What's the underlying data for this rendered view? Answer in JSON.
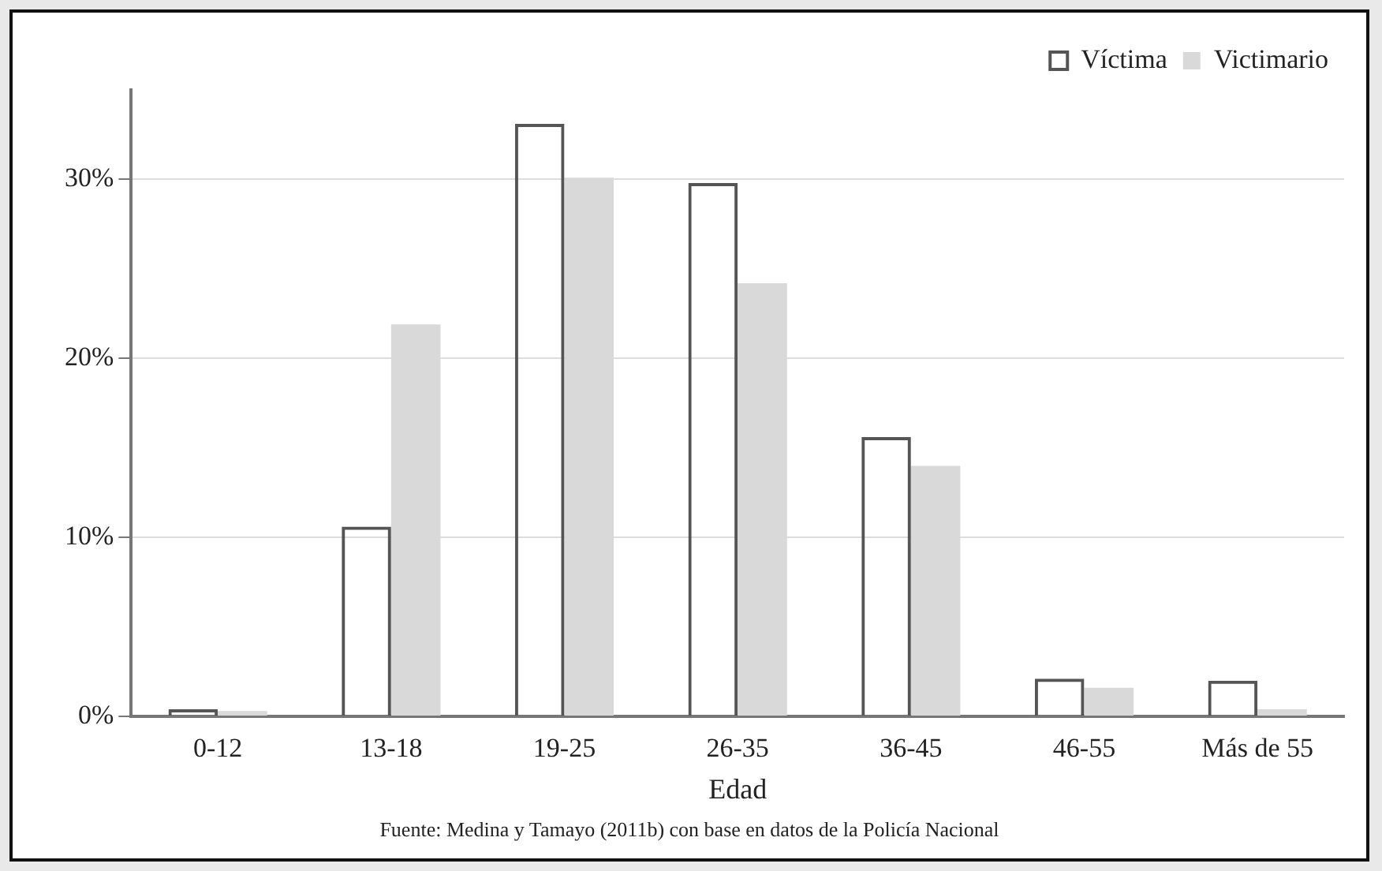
{
  "chart_data": {
    "type": "bar",
    "xlabel": "Edad",
    "categories": [
      "0-12",
      "13-18",
      "19-25",
      "26-35",
      "36-45",
      "46-55",
      "Más de 55"
    ],
    "series": [
      {
        "name": "Víctima",
        "color": "#555555",
        "values": [
          0.4,
          10.6,
          33.1,
          29.8,
          15.6,
          2.1,
          2.0
        ]
      },
      {
        "name": "Victimario",
        "color": "#d9d9d9",
        "values": [
          0.3,
          21.9,
          30.1,
          24.2,
          14.0,
          1.6,
          0.4
        ]
      }
    ],
    "ylim": [
      0,
      35
    ],
    "yticks": [
      {
        "value": 0,
        "label": "0%"
      },
      {
        "value": 10,
        "label": "10%"
      },
      {
        "value": 20,
        "label": "20%"
      },
      {
        "value": 30,
        "label": "30%"
      }
    ],
    "grid": "y",
    "legend": "top right",
    "annotations": [
      "Fuente: Medina y Tamayo (2011b) con base en datos de la Policía Nacional"
    ]
  }
}
